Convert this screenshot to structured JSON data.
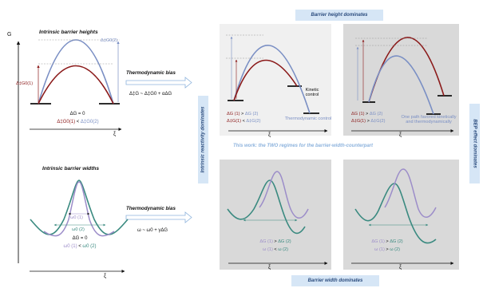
{
  "banners": {
    "top": "Barrier height dominates",
    "bottom": "Barrier width dominates",
    "left": "Intrinsic reactivity dominates",
    "right": "BEP effect dominates"
  },
  "axis": {
    "g": "G",
    "xi": "ξ"
  },
  "left_top": {
    "title": "Intrinsic barrier heights",
    "label_g2": "Δ‡G0(2)",
    "label_g1": "Δ‡G0(1)",
    "dg": "ΔG = 0",
    "relation_a": "Δ‡G0(1)",
    "relation_op": " < ",
    "relation_b": "Δ‡G0(2)"
  },
  "left_bottom": {
    "title": "Intrinsic barrier widths",
    "label_w0_1": "ω0 (1)",
    "label_w0_2": "ω0 (2)",
    "dg": "ΔG = 0",
    "relation_a": "ω0 (1)",
    "relation_op": " < ",
    "relation_b": "ω0 (2)"
  },
  "bias_top": {
    "label": "Thermodynamic bias",
    "equation": "Δ‡G ~ Δ‡G0 + αΔG"
  },
  "bias_bottom": {
    "label": "Thermodynamic bias",
    "equation": "ω ~ ω0 + γΔG"
  },
  "this_work": "This work: the TWO regimes for the barrier-width-counterpart",
  "panel_tl": {
    "kinetic": "Kinetic control",
    "thermo": "Thermodynamic control",
    "rel1_a": "ΔG (1)",
    "rel1_op": " > ",
    "rel1_b": "ΔG (2)",
    "rel2_a": "Δ‡G(1)",
    "rel2_op": " < ",
    "rel2_b": "Δ‡G(2)"
  },
  "panel_tr": {
    "rel1_a": "ΔG (1)",
    "rel1_op": " > ",
    "rel1_b": "ΔG (2)",
    "rel2_a": "Δ‡G(1)",
    "rel2_op": " > ",
    "rel2_b": "Δ‡G(2)",
    "note": "One path favored kinetically and thermodynamically"
  },
  "panel_bl": {
    "rel1_a": "ΔG (1)",
    "rel1_op": " > ",
    "rel1_b": "ΔG (2)",
    "rel2_a": "ω (1)",
    "rel2_op": " < ",
    "rel2_b": "ω (2)"
  },
  "panel_br": {
    "rel1_a": "ΔG (1)",
    "rel1_op": " > ",
    "rel1_b": "ΔG (2)",
    "rel2_a": "ω (1)",
    "rel2_op": " > ",
    "rel2_b": "ω (2)"
  },
  "colors": {
    "path1_height": "#8b1a1a",
    "path2_height": "#7a8fc4",
    "path1_width": "#9c8dc9",
    "path2_width": "#3a8a80",
    "banner": "#d6e6f6",
    "panel_light": "#f0f0f0",
    "panel_dark": "#d9d9d9"
  }
}
